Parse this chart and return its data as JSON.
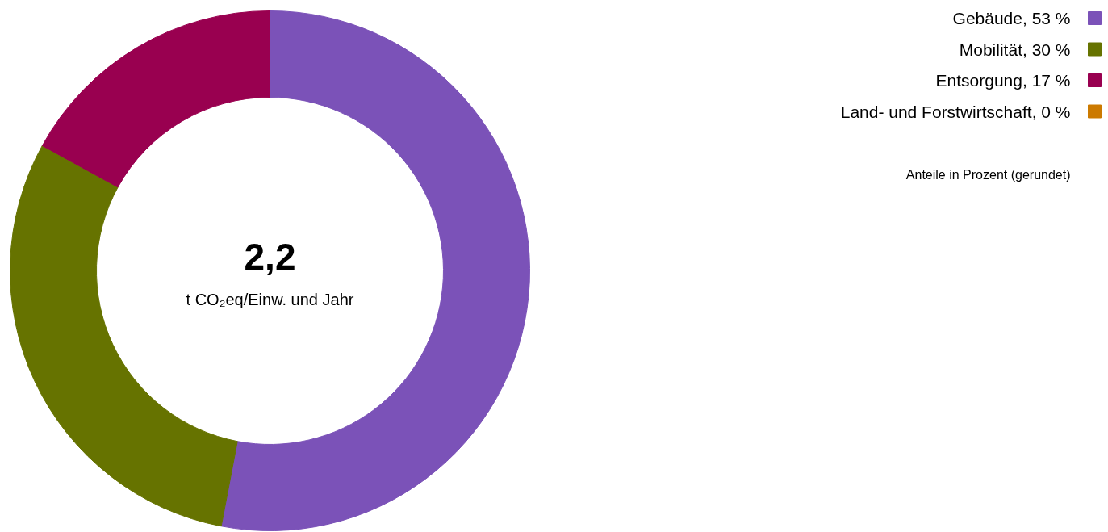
{
  "chart_data": {
    "type": "donut",
    "categories": [
      "Gebäude",
      "Mobilität",
      "Entsorgung",
      "Land- und Forstwirtschaft"
    ],
    "values": [
      53,
      30,
      17,
      0
    ],
    "value_labels": [
      "53 %",
      "30 %",
      "17 %",
      "0 %"
    ],
    "colors": [
      "#7b52b8",
      "#667300",
      "#990050",
      "#cc7a00"
    ],
    "legend": "top right",
    "annotations": [
      "2,2",
      "t CO₂eq/Einw. und Jahr",
      "Anteile in Prozent (gerundet)"
    ]
  }
}
